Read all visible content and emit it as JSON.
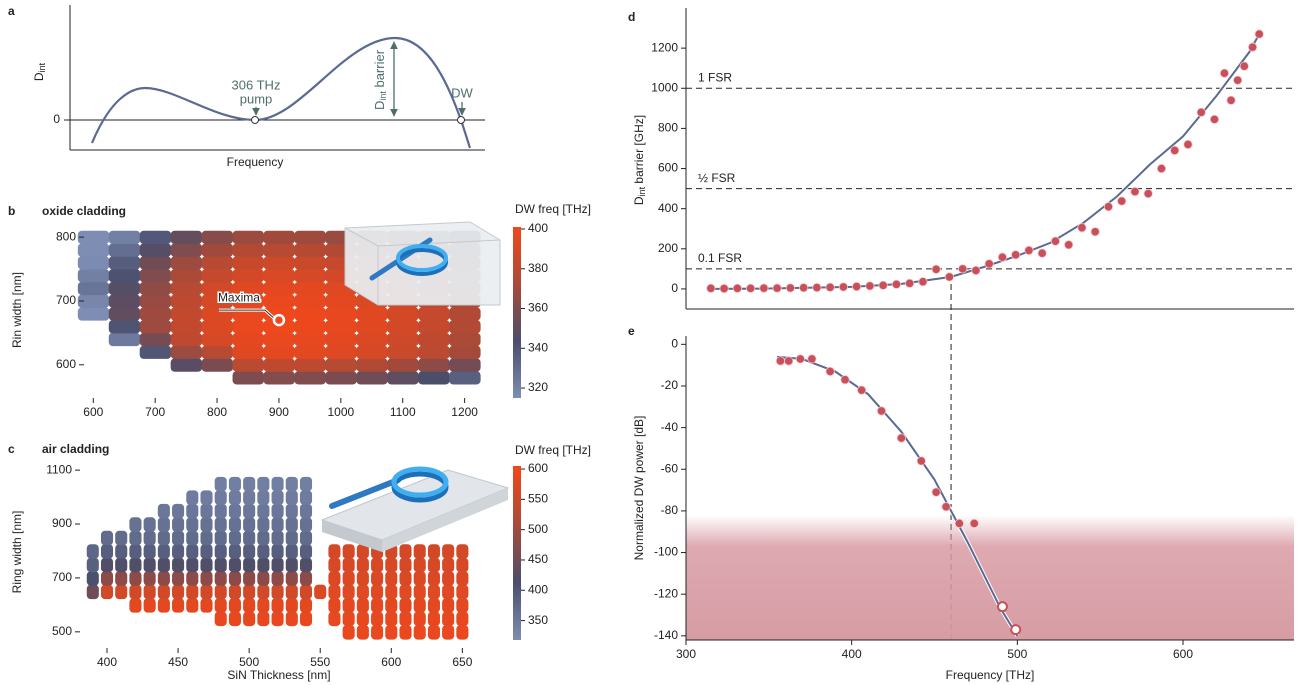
{
  "chart_data": [
    {
      "type": "schematic",
      "label": "a",
      "ylabel": [
        "D",
        "int"
      ],
      "xlabel": "Frequency",
      "yticks": [
        0
      ],
      "pump_label": [
        "306 THz",
        "pump"
      ],
      "barrier_label": [
        "D",
        "int",
        " barrier"
      ],
      "dw_label": "DW"
    },
    {
      "type": "heatmap",
      "label": "b",
      "title": "oxide cladding",
      "ylabel": "Rin width [nm]",
      "x": [
        600,
        650,
        700,
        750,
        800,
        850,
        900,
        950,
        1000,
        1050,
        1100,
        1150,
        1200
      ],
      "y": [
        580,
        600,
        620,
        640,
        660,
        680,
        700,
        720,
        740,
        760,
        780,
        800
      ],
      "values": [
        [
          null,
          null,
          null,
          null,
          null,
          359,
          361,
          360,
          358,
          355,
          350,
          344,
          336
        ],
        [
          null,
          null,
          null,
          348,
          358,
          379,
          381,
          380,
          378,
          375,
          370,
          364,
          356
        ],
        [
          null,
          null,
          340,
          368,
          378,
          394,
          396,
          395,
          393,
          390,
          385,
          379,
          371
        ],
        [
          null,
          324,
          357,
          380,
          390,
          396,
          398,
          397,
          395,
          392,
          387,
          381,
          373
        ],
        [
          null,
          341,
          369,
          382,
          392,
          398,
          400,
          399,
          397,
          394,
          389,
          383,
          375
        ],
        [
          305,
          351,
          369,
          382,
          392,
          398,
          400,
          399,
          397,
          394,
          389,
          383,
          375
        ],
        [
          318,
          349,
          367,
          380,
          390,
          396,
          398,
          397,
          395,
          392,
          387,
          381,
          373
        ],
        [
          326,
          347,
          365,
          378,
          388,
          394,
          396,
          395,
          393,
          390,
          385,
          379,
          371
        ],
        [
          321,
          342,
          360,
          373,
          383,
          389,
          391,
          390,
          388,
          385,
          380,
          374,
          366
        ],
        [
          316,
          337,
          355,
          368,
          378,
          384,
          386,
          385,
          383,
          380,
          375,
          369,
          361
        ],
        [
          308,
          329,
          347,
          360,
          370,
          376,
          378,
          377,
          375,
          372,
          367,
          361,
          353
        ],
        [
          300,
          321,
          339,
          352,
          362,
          368,
          370,
          369,
          367,
          364,
          359,
          353,
          345
        ]
      ],
      "xlim": [
        585,
        1220
      ],
      "ylim": [
        548,
        819
      ],
      "xticks": [
        600,
        700,
        800,
        900,
        1000,
        1100,
        1200
      ],
      "yticks": [
        600,
        700,
        800
      ],
      "colormap": [
        "#7d8db3",
        "#4a4e6c",
        "#a94a38",
        "#f2481b"
      ],
      "colorbar": {
        "label": "DW freq [THz]",
        "clim": [
          315,
          401
        ],
        "ticks": [
          320,
          340,
          360,
          380,
          400
        ]
      },
      "annotation": {
        "text": "Maxima",
        "x": 900,
        "y": 670
      }
    },
    {
      "type": "column_heatmap",
      "label": "c",
      "title": "air cladding",
      "xlabel": "SiN Thickness [nm]",
      "ylabel": "Ring width [nm]",
      "x": [
        390,
        400,
        410,
        420,
        430,
        440,
        450,
        460,
        470,
        480,
        490,
        500,
        510,
        520,
        530,
        540,
        550,
        560,
        570,
        580,
        590,
        600,
        610,
        620,
        630,
        640,
        650
      ],
      "y": [
        500,
        550,
        600,
        650,
        700,
        750,
        800,
        850,
        900,
        950,
        1000,
        1050,
        1100
      ],
      "values": [
        [
          null,
          null,
          null,
          450,
          410,
          385,
          375,
          null,
          null,
          null,
          null,
          null,
          null
        ],
        [
          null,
          null,
          null,
          560,
          480,
          420,
          390,
          370,
          null,
          null,
          null,
          null,
          null
        ],
        [
          null,
          null,
          null,
          560,
          480,
          420,
          390,
          370,
          null,
          null,
          null,
          null,
          null
        ],
        [
          null,
          null,
          585,
          560,
          480,
          420,
          390,
          370,
          360,
          null,
          null,
          null,
          null
        ],
        [
          null,
          null,
          585,
          560,
          480,
          420,
          390,
          370,
          360,
          null,
          null,
          null,
          null
        ],
        [
          null,
          null,
          585,
          560,
          480,
          420,
          390,
          370,
          360,
          352,
          null,
          null,
          null
        ],
        [
          null,
          null,
          585,
          560,
          480,
          420,
          390,
          370,
          360,
          352,
          null,
          null,
          null
        ],
        [
          null,
          null,
          585,
          560,
          480,
          420,
          390,
          370,
          360,
          352,
          345,
          null,
          null
        ],
        [
          null,
          null,
          585,
          560,
          480,
          420,
          390,
          370,
          360,
          352,
          345,
          null,
          null
        ],
        [
          null,
          590,
          585,
          560,
          480,
          420,
          390,
          370,
          360,
          352,
          345,
          340,
          null
        ],
        [
          null,
          590,
          585,
          560,
          480,
          420,
          390,
          370,
          360,
          352,
          345,
          340,
          null
        ],
        [
          null,
          590,
          585,
          560,
          480,
          420,
          390,
          370,
          360,
          352,
          345,
          340,
          null
        ],
        [
          null,
          590,
          585,
          560,
          480,
          420,
          390,
          370,
          360,
          352,
          345,
          340,
          null
        ],
        [
          null,
          590,
          585,
          560,
          480,
          420,
          390,
          370,
          360,
          352,
          345,
          340,
          null
        ],
        [
          null,
          590,
          585,
          560,
          480,
          420,
          390,
          370,
          360,
          352,
          345,
          340,
          null
        ],
        [
          null,
          590,
          585,
          560,
          480,
          420,
          390,
          370,
          360,
          352,
          345,
          340,
          null
        ],
        [
          null,
          null,
          null,
          575,
          null,
          null,
          null,
          null,
          null,
          null,
          null,
          null,
          null
        ],
        [
          null,
          590,
          585,
          580,
          575,
          570,
          565,
          null,
          null,
          null,
          null,
          null,
          null
        ],
        [
          595,
          590,
          585,
          580,
          575,
          570,
          565,
          null,
          null,
          null,
          null,
          null,
          null
        ],
        [
          595,
          590,
          585,
          580,
          575,
          570,
          565,
          null,
          null,
          null,
          null,
          null,
          null
        ],
        [
          595,
          590,
          585,
          580,
          575,
          570,
          565,
          null,
          null,
          null,
          null,
          null,
          null
        ],
        [
          595,
          590,
          585,
          580,
          575,
          570,
          565,
          null,
          null,
          null,
          null,
          null,
          null
        ],
        [
          595,
          590,
          585,
          580,
          575,
          570,
          565,
          null,
          null,
          null,
          null,
          null,
          null
        ],
        [
          595,
          590,
          585,
          580,
          575,
          570,
          565,
          null,
          null,
          null,
          null,
          null,
          null
        ],
        [
          595,
          590,
          585,
          580,
          575,
          570,
          565,
          null,
          null,
          null,
          null,
          null,
          null
        ],
        [
          595,
          590,
          585,
          580,
          575,
          570,
          565,
          null,
          null,
          null,
          null,
          null,
          null
        ],
        [
          595,
          590,
          585,
          580,
          575,
          570,
          565,
          null,
          null,
          null,
          null,
          null,
          null
        ]
      ],
      "xlim": [
        381,
        661
      ],
      "ylim": [
        440,
        1145
      ],
      "xticks": [
        400,
        450,
        500,
        550,
        600,
        650
      ],
      "yticks": [
        500,
        700,
        900,
        1100
      ],
      "colormap": [
        "#7d8db3",
        "#4a4e6c",
        "#a94a38",
        "#f2481b"
      ],
      "colorbar": {
        "label": "DW freq [THz]",
        "clim": [
          318,
          605
        ],
        "ticks": [
          350,
          400,
          450,
          500,
          550,
          600
        ]
      }
    },
    {
      "type": "scatter_fit",
      "label": "d",
      "ylabel": [
        "D",
        "int",
        " barrier [GHz]"
      ],
      "xlim": [
        300,
        667
      ],
      "ylim": [
        -100,
        1400
      ],
      "yticks": [
        0,
        200,
        400,
        600,
        800,
        1000,
        1200
      ],
      "hlines": [
        {
          "value": 1000,
          "label": "1 FSR"
        },
        {
          "value": 500,
          "label": "½ FSR"
        },
        {
          "value": 100,
          "label": "0.1 FSR"
        }
      ],
      "vline": 460,
      "color": "#c9505b",
      "fit_color": "#5c6a93",
      "series": [
        {
          "x": [
            315,
            323,
            331,
            339,
            347,
            355,
            363,
            371,
            379,
            387,
            395,
            403,
            411,
            419,
            427,
            435,
            443,
            451,
            459,
            467,
            475,
            483,
            491,
            499,
            507,
            515,
            523,
            531,
            539,
            547,
            555,
            563,
            571,
            579,
            587,
            595,
            603,
            611,
            619,
            625,
            629,
            633,
            637,
            642,
            646
          ],
          "values": [
            3,
            2,
            3,
            3,
            4,
            4,
            5,
            6,
            7,
            8,
            10,
            12,
            15,
            18,
            23,
            28,
            36,
            98,
            60,
            100,
            92,
            125,
            158,
            170,
            192,
            178,
            238,
            220,
            305,
            285,
            410,
            438,
            485,
            475,
            600,
            690,
            720,
            880,
            845,
            1075,
            940,
            1040,
            1110,
            1205,
            1270
          ]
        }
      ],
      "fit": {
        "x": [
          315,
          350,
          400,
          430,
          460,
          480,
          500,
          520,
          540,
          560,
          580,
          600,
          620,
          640,
          646
        ],
        "values": [
          0,
          2,
          10,
          25,
          60,
          110,
          165,
          230,
          330,
          460,
          620,
          760,
          960,
          1180,
          1270
        ]
      }
    },
    {
      "type": "scatter_fit",
      "label": "e",
      "ylabel": "Normalized DW power [dB]",
      "xlabel": "Frequency [THz]",
      "xlim": [
        300,
        667
      ],
      "ylim": [
        -142,
        4
      ],
      "xticks": [
        300,
        400,
        500,
        600
      ],
      "yticks": [
        0,
        -20,
        -40,
        -60,
        -80,
        -100,
        -120,
        -140
      ],
      "shade": [
        -82,
        -142
      ],
      "color": "#c9505b",
      "fit_color": "#5c6a93",
      "series": [
        {
          "x": [
            357,
            362,
            369,
            376,
            387,
            396,
            406,
            418,
            430,
            442,
            451,
            457,
            465,
            474
          ],
          "values": [
            -8,
            -8,
            -7,
            -7,
            -13,
            -17,
            -22,
            -32,
            -45,
            -56,
            -71,
            -78,
            -86,
            -86
          ]
        },
        {
          "marker": "open",
          "x": [
            491,
            499
          ],
          "values": [
            -126,
            -137
          ]
        }
      ],
      "fit": {
        "x": [
          355,
          370,
          390,
          410,
          430,
          450,
          470,
          490,
          500
        ],
        "values": [
          -6,
          -7,
          -13,
          -24,
          -42,
          -65,
          -95,
          -127,
          -140
        ]
      }
    }
  ]
}
